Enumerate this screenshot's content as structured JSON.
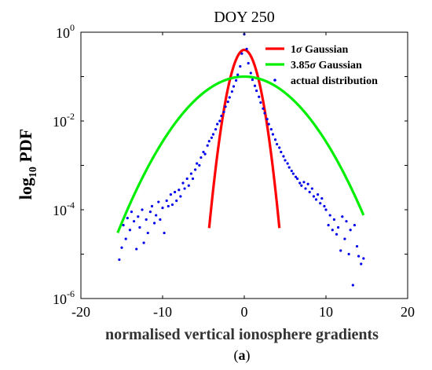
{
  "chart_data": {
    "type": "line",
    "title": "DOY 250",
    "xlabel": "normalised vertical ionosphere gradients",
    "ylabel_base": "log",
    "ylabel_sub": "10",
    "ylabel_rest": " PDF",
    "caption_open": "(",
    "caption_letter": "a",
    "caption_close": ")",
    "xlim": [
      -20,
      20
    ],
    "ylim_exp": [
      -6,
      0
    ],
    "yscale": "log",
    "xticks": [
      {
        "value": -20,
        "label": "-20"
      },
      {
        "value": -10,
        "label": "-10"
      },
      {
        "value": 0,
        "label": "0"
      },
      {
        "value": 10,
        "label": "10"
      },
      {
        "value": 20,
        "label": "20"
      }
    ],
    "yticks": [
      {
        "exp": 0,
        "base": "10",
        "sup": "0"
      },
      {
        "exp": -2,
        "base": "10",
        "sup": "-2"
      },
      {
        "exp": -4,
        "base": "10",
        "sup": "-4"
      },
      {
        "exp": -6,
        "base": "10",
        "sup": "-6"
      }
    ],
    "legend_position": "top-right",
    "grid": false,
    "series": [
      {
        "kind": "gaussian",
        "label_pre": "1",
        "label_sym": "σ",
        "label_post": " Gaussian",
        "color": "#ff0000",
        "peak": 0.4,
        "sigma": 1.0,
        "x_range": [
          -4.3,
          4.3
        ]
      },
      {
        "kind": "gaussian",
        "label_pre": "3.85",
        "label_sym": "σ",
        "label_post": " Gaussian",
        "color": "#00ee00",
        "peak": 0.1,
        "sigma": 3.85,
        "x_range": [
          -15.5,
          14.6
        ]
      },
      {
        "kind": "scatter",
        "label_pre": "actual distribution",
        "label_sym": "",
        "label_post": "",
        "color": "#0000ee",
        "points": [
          [
            -15.3,
            7.5e-06
          ],
          [
            -15.0,
            1.4e-05
          ],
          [
            -14.8,
            4.5e-05
          ],
          [
            -14.5,
            2.2e-05
          ],
          [
            -14.3,
            6.5e-05
          ],
          [
            -14.0,
            3.5e-05
          ],
          [
            -13.8,
            9e-05
          ],
          [
            -13.5,
            5.5e-05
          ],
          [
            -13.2,
            1.3e-05
          ],
          [
            -13.0,
            7e-05
          ],
          [
            -12.8,
            4e-05
          ],
          [
            -12.5,
            0.0001
          ],
          [
            -12.3,
            1.8e-05
          ],
          [
            -12.0,
            6e-05
          ],
          [
            -11.8,
            3e-05
          ],
          [
            -11.5,
            9e-05
          ],
          [
            -11.3,
            0.00012
          ],
          [
            -11.0,
            5e-05
          ],
          [
            -10.8,
            7.5e-05
          ],
          [
            -10.5,
            0.00015
          ],
          [
            -10.3,
            6e-05
          ],
          [
            -10.0,
            0.00011
          ],
          [
            -9.8,
            3e-05
          ],
          [
            -9.5,
            0.00016
          ],
          [
            -9.3,
            0.00012
          ],
          [
            -9.0,
            0.00022
          ],
          [
            -8.8,
            0.00013
          ],
          [
            -8.5,
            0.00025
          ],
          [
            -8.3,
            0.00016
          ],
          [
            -8.0,
            0.00028
          ],
          [
            -7.8,
            0.0002
          ],
          [
            -7.5,
            0.0004
          ],
          [
            -7.3,
            0.0003
          ],
          [
            -7.0,
            0.0005
          ],
          [
            -6.8,
            0.00035
          ],
          [
            -6.5,
            0.00065
          ],
          [
            -6.3,
            0.0005
          ],
          [
            -6.0,
            0.0008
          ],
          [
            -5.8,
            0.0011
          ],
          [
            -5.5,
            0.001
          ],
          [
            -5.3,
            0.0015
          ],
          [
            -5.0,
            0.002
          ],
          [
            -4.8,
            0.0018
          ],
          [
            -4.5,
            0.0028
          ],
          [
            -4.3,
            0.0035
          ],
          [
            -4.0,
            0.0042
          ],
          [
            -3.8,
            0.005
          ],
          [
            -3.5,
            0.0065
          ],
          [
            -3.3,
            0.0085
          ],
          [
            -3.0,
            0.01
          ],
          [
            -2.8,
            0.013
          ],
          [
            -2.5,
            0.016
          ],
          [
            -2.3,
            0.021
          ],
          [
            -2.0,
            0.027
          ],
          [
            -1.8,
            0.034
          ],
          [
            -1.5,
            0.046
          ],
          [
            -1.3,
            0.06
          ],
          [
            -1.0,
            0.082
          ],
          [
            -0.8,
            0.11
          ],
          [
            -0.5,
            0.17
          ],
          [
            -0.3,
            0.33
          ],
          [
            0.0,
            0.9
          ],
          [
            0.3,
            0.42
          ],
          [
            0.5,
            0.2
          ],
          [
            0.8,
            0.12
          ],
          [
            1.0,
            0.085
          ],
          [
            1.3,
            0.062
          ],
          [
            1.5,
            0.048
          ],
          [
            1.8,
            0.035
          ],
          [
            2.0,
            0.026
          ],
          [
            2.3,
            0.019
          ],
          [
            2.5,
            0.015
          ],
          [
            2.8,
            0.011
          ],
          [
            3.0,
            0.0085
          ],
          [
            3.3,
            0.0065
          ],
          [
            3.5,
            0.005
          ],
          [
            3.8,
            0.0038
          ],
          [
            4.0,
            0.003
          ],
          [
            4.3,
            0.0025
          ],
          [
            4.5,
            0.002
          ],
          [
            4.8,
            0.0016
          ],
          [
            5.0,
            0.0013
          ],
          [
            5.3,
            0.0011
          ],
          [
            5.5,
            0.0009
          ],
          [
            5.8,
            0.00075
          ],
          [
            6.0,
            0.00065
          ],
          [
            6.3,
            0.00055
          ],
          [
            6.5,
            0.0005
          ],
          [
            6.8,
            0.0004
          ],
          [
            7.0,
            0.00035
          ],
          [
            7.3,
            0.00042
          ],
          [
            7.5,
            0.0003
          ],
          [
            7.8,
            0.00038
          ],
          [
            8.0,
            0.00025
          ],
          [
            8.3,
            0.0003
          ],
          [
            8.5,
            0.0002
          ],
          [
            8.8,
            0.00017
          ],
          [
            9.0,
            0.00022
          ],
          [
            9.3,
            0.00014
          ],
          [
            9.5,
            0.00018
          ],
          [
            9.8,
            0.00012
          ],
          [
            10.0,
            0.0001
          ],
          [
            10.3,
            4.5e-05
          ],
          [
            10.5,
            7.5e-05
          ],
          [
            10.8,
            3.5e-05
          ],
          [
            11.0,
            6e-05
          ],
          [
            11.3,
            2.8e-05
          ],
          [
            11.5,
            4e-05
          ],
          [
            11.8,
            1.2e-05
          ],
          [
            12.0,
            7e-05
          ],
          [
            12.3,
            2.2e-05
          ],
          [
            12.5,
            5.5e-05
          ],
          [
            12.8,
            1e-05
          ],
          [
            13.0,
            3.5e-05
          ],
          [
            13.3,
            2e-06
          ],
          [
            13.5,
            4.5e-05
          ],
          [
            13.8,
            1.5e-05
          ],
          [
            14.0,
            9e-06
          ],
          [
            14.3,
            6e-06
          ],
          [
            14.6,
            8e-06
          ]
        ]
      }
    ]
  }
}
